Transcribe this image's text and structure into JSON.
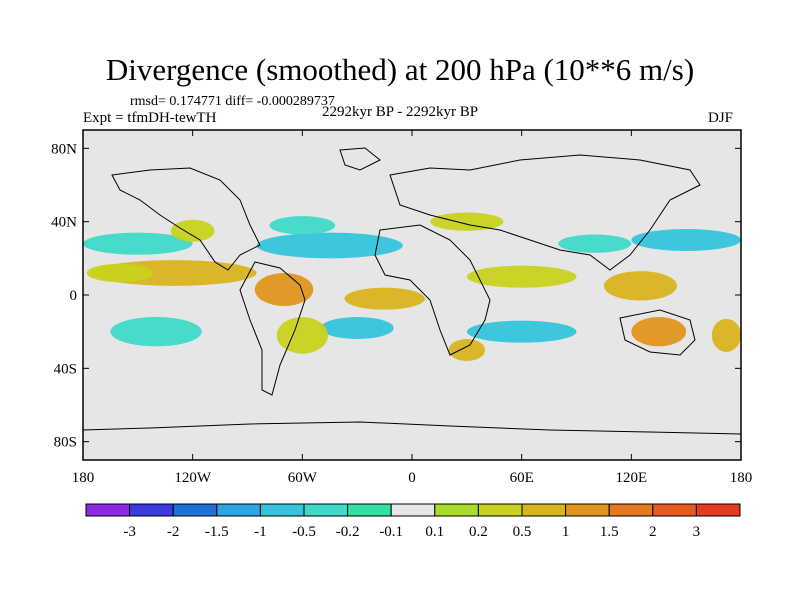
{
  "title": "Divergence (smoothed) at 200 hPa (10**6 m/s)",
  "stats": "rmsd= 0.174771 diff= -0.000289737",
  "experiment": "Expt = tfmDH-tewTH",
  "period": "2292kyr BP - 2292kyr BP",
  "season": "DJF",
  "map": {
    "background_color": "#e6e6e6",
    "lon_range": [
      -180,
      180
    ],
    "lat_range": [
      -90,
      90
    ],
    "x_ticks": [
      {
        "lon": -180,
        "label": "180"
      },
      {
        "lon": -120,
        "label": "120W"
      },
      {
        "lon": -60,
        "label": "60W"
      },
      {
        "lon": 0,
        "label": "0"
      },
      {
        "lon": 60,
        "label": "60E"
      },
      {
        "lon": 120,
        "label": "120E"
      },
      {
        "lon": 180,
        "label": "180"
      }
    ],
    "y_ticks": [
      {
        "lat": 80,
        "label": "80N"
      },
      {
        "lat": 40,
        "label": "40N"
      },
      {
        "lat": 0,
        "label": "0"
      },
      {
        "lat": -40,
        "label": "40S"
      },
      {
        "lat": -80,
        "label": "80S"
      }
    ]
  },
  "colorbar": {
    "colors": [
      "#8a2be2",
      "#3a3ae0",
      "#1e6fd6",
      "#2aa6e6",
      "#35c4dc",
      "#3fd9c8",
      "#33e0a0",
      "#e6e6e6",
      "#a8dc2a",
      "#c8d21e",
      "#d8b41e",
      "#e0961e",
      "#e6781e",
      "#e65a1e",
      "#e63c1e"
    ],
    "labels": [
      "-3",
      "-2",
      "-1.5",
      "-1",
      "-0.5",
      "-0.2",
      "-0.1",
      "0.1",
      "0.2",
      "0.5",
      "1",
      "1.5",
      "2",
      "3"
    ]
  },
  "fields": [
    {
      "id": "band-n-atl-1",
      "lon": -45,
      "lat": 27,
      "rx": 40,
      "ry": 7,
      "color": "#35c4dc"
    },
    {
      "id": "band-n-atl-2",
      "lon": -60,
      "lat": 38,
      "rx": 18,
      "ry": 5,
      "color": "#3fd9c8"
    },
    {
      "id": "band-n-pac-1",
      "lon": -150,
      "lat": 28,
      "rx": 30,
      "ry": 6,
      "color": "#3fd9c8"
    },
    {
      "id": "band-n-pac-2",
      "lon": 150,
      "lat": 30,
      "rx": 30,
      "ry": 6,
      "color": "#35c4dc"
    },
    {
      "id": "band-asia",
      "lon": 100,
      "lat": 28,
      "rx": 20,
      "ry": 5,
      "color": "#3fd9c8"
    },
    {
      "id": "band-eq-pac-e",
      "lon": -130,
      "lat": 12,
      "rx": 45,
      "ry": 7,
      "color": "#d8b41e"
    },
    {
      "id": "band-eq-pac-e2",
      "lon": -160,
      "lat": 12,
      "rx": 18,
      "ry": 5,
      "color": "#c8d21e"
    },
    {
      "id": "band-eq-amer",
      "lon": -70,
      "lat": 3,
      "rx": 16,
      "ry": 9,
      "color": "#e0961e"
    },
    {
      "id": "band-eq-atl",
      "lon": -15,
      "lat": -2,
      "rx": 22,
      "ry": 6,
      "color": "#d8b41e"
    },
    {
      "id": "band-eq-ind",
      "lon": 60,
      "lat": 10,
      "rx": 30,
      "ry": 6,
      "color": "#c8d21e"
    },
    {
      "id": "band-eq-wpac",
      "lon": 125,
      "lat": 5,
      "rx": 20,
      "ry": 8,
      "color": "#d8b41e"
    },
    {
      "id": "band-s-pac",
      "lon": -140,
      "lat": -20,
      "rx": 25,
      "ry": 8,
      "color": "#3fd9c8"
    },
    {
      "id": "band-s-atl",
      "lon": -30,
      "lat": -18,
      "rx": 20,
      "ry": 6,
      "color": "#35c4dc"
    },
    {
      "id": "band-s-ind",
      "lon": 60,
      "lat": -20,
      "rx": 30,
      "ry": 6,
      "color": "#35c4dc"
    },
    {
      "id": "band-s-afr",
      "lon": 30,
      "lat": -30,
      "rx": 10,
      "ry": 6,
      "color": "#d8b41e"
    },
    {
      "id": "band-aus",
      "lon": 135,
      "lat": -20,
      "rx": 15,
      "ry": 8,
      "color": "#e0961e"
    },
    {
      "id": "band-s-amer",
      "lon": -60,
      "lat": -22,
      "rx": 14,
      "ry": 10,
      "color": "#c8d21e"
    },
    {
      "id": "band-midlat-n",
      "lon": 30,
      "lat": 40,
      "rx": 20,
      "ry": 5,
      "color": "#c8d21e"
    },
    {
      "id": "band-far-e",
      "lon": 172,
      "lat": -22,
      "rx": 8,
      "ry": 9,
      "color": "#d8b41e"
    },
    {
      "id": "band-nw-amer",
      "lon": -120,
      "lat": 35,
      "rx": 12,
      "ry": 6,
      "color": "#c8d21e"
    }
  ]
}
